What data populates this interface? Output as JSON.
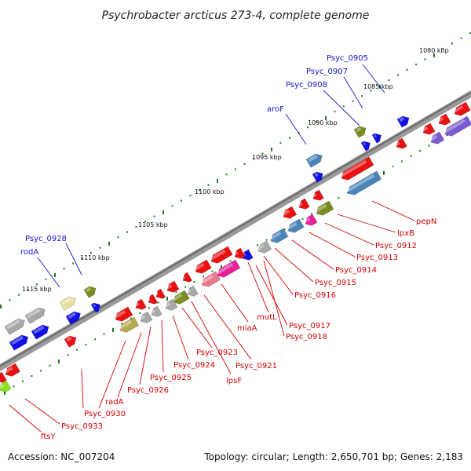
{
  "title": "Psychrobacter arcticus 273-4, complete genome",
  "footer": {
    "accession": "Accession: NC_007204",
    "stats": "Topology: circular; Length: 2,650,701 bp; Genes: 2,183"
  },
  "scale_labels": [
    "1080 kbp",
    "1085 kbp",
    "1090 kbp",
    "1095 kbp",
    "1100 kbp",
    "1105 kbp",
    "1110 kbp",
    "1115 kbp"
  ],
  "forward_labels": [
    "Psyc_0905",
    "Psyc_0907",
    "Psyc_0908",
    "aroF",
    "Psyc_0928",
    "rodA"
  ],
  "reverse_labels": [
    "pepN",
    "lpxB",
    "Psyc_0912",
    "Psyc_0913",
    "Psyc_0914",
    "Psyc_0915",
    "Psyc_0916",
    "mutL",
    "Psyc_0917",
    "Psyc_0918",
    "miaA",
    "Psyc_0921",
    "Psyc_0923",
    "lpsF",
    "Psyc_0924",
    "Psyc_0925",
    "Psyc_0926",
    "radA",
    "Psyc_0930",
    "Psyc_0933",
    "ftsY"
  ],
  "colors": {
    "backbone": "#7a7a7a",
    "forward_label": "#1515c8",
    "reverse_label": "#d40000",
    "scale_dot": "#1e7a1e",
    "gene_red": "#e81010",
    "gene_blue": "#1010e6",
    "gene_steel": "#4a84b8",
    "gene_olive": "#7a8c1e",
    "gene_grey": "#a8a8a8",
    "gene_magenta": "#e8209a",
    "gene_purple": "#7a5ad0",
    "gene_pink": "#e87a8a",
    "gene_yellow": "#e8e0a0",
    "gene_lime": "#8ce020",
    "gene_khaki": "#b8a850"
  }
}
